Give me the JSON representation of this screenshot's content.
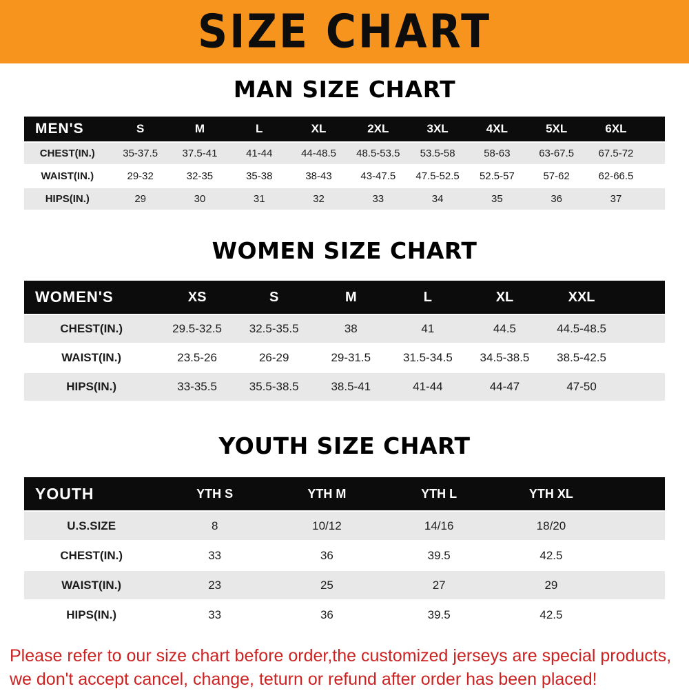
{
  "banner": {
    "title": "SIZE CHART",
    "bg_color": "#f7941e"
  },
  "sections": [
    {
      "heading": "MAN SIZE CHART",
      "table": {
        "header_label": "MEN'S",
        "columns": [
          "S",
          "M",
          "L",
          "XL",
          "2XL",
          "3XL",
          "4XL",
          "5XL",
          "6XL"
        ],
        "rows": [
          {
            "label": "CHEST(IN.)",
            "values": [
              "35-37.5",
              "37.5-41",
              "41-44",
              "44-48.5",
              "48.5-53.5",
              "53.5-58",
              "58-63",
              "63-67.5",
              "67.5-72"
            ]
          },
          {
            "label": "WAIST(IN.)",
            "values": [
              "29-32",
              "32-35",
              "35-38",
              "38-43",
              "43-47.5",
              "47.5-52.5",
              "52.5-57",
              "57-62",
              "62-66.5"
            ]
          },
          {
            "label": "HIPS(IN.)",
            "values": [
              "29",
              "30",
              "31",
              "32",
              "33",
              "34",
              "35",
              "36",
              "37"
            ]
          }
        ]
      }
    },
    {
      "heading": "WOMEN SIZE CHART",
      "table": {
        "header_label": "WOMEN'S",
        "columns": [
          "XS",
          "S",
          "M",
          "L",
          "XL",
          "XXL"
        ],
        "rows": [
          {
            "label": "CHEST(IN.)",
            "values": [
              "29.5-32.5",
              "32.5-35.5",
              "38",
              "41",
              "44.5",
              "44.5-48.5"
            ]
          },
          {
            "label": "WAIST(IN.)",
            "values": [
              "23.5-26",
              "26-29",
              "29-31.5",
              "31.5-34.5",
              "34.5-38.5",
              "38.5-42.5"
            ]
          },
          {
            "label": "HIPS(IN.)",
            "values": [
              "33-35.5",
              "35.5-38.5",
              "38.5-41",
              "41-44",
              "44-47",
              "47-50"
            ]
          }
        ]
      }
    },
    {
      "heading": "YOUTH SIZE CHART",
      "table": {
        "header_label": "YOUTH",
        "columns": [
          "YTH S",
          "YTH M",
          "YTH L",
          "YTH XL"
        ],
        "rows": [
          {
            "label": "U.S.SIZE",
            "values": [
              "8",
              "10/12",
              "14/16",
              "18/20"
            ]
          },
          {
            "label": "CHEST(IN.)",
            "values": [
              "33",
              "36",
              "39.5",
              "42.5"
            ]
          },
          {
            "label": "WAIST(IN.)",
            "values": [
              "23",
              "25",
              "27",
              "29"
            ]
          },
          {
            "label": "HIPS(IN.)",
            "values": [
              "33",
              "36",
              "39.5",
              "42.5"
            ]
          }
        ]
      }
    }
  ],
  "footer": {
    "line1": "Please refer to our size chart before order,the customized jerseys are special products,",
    "line2": "we don't accept cancel, change, teturn or refund after order has been placed!",
    "color": "#cc2222"
  }
}
